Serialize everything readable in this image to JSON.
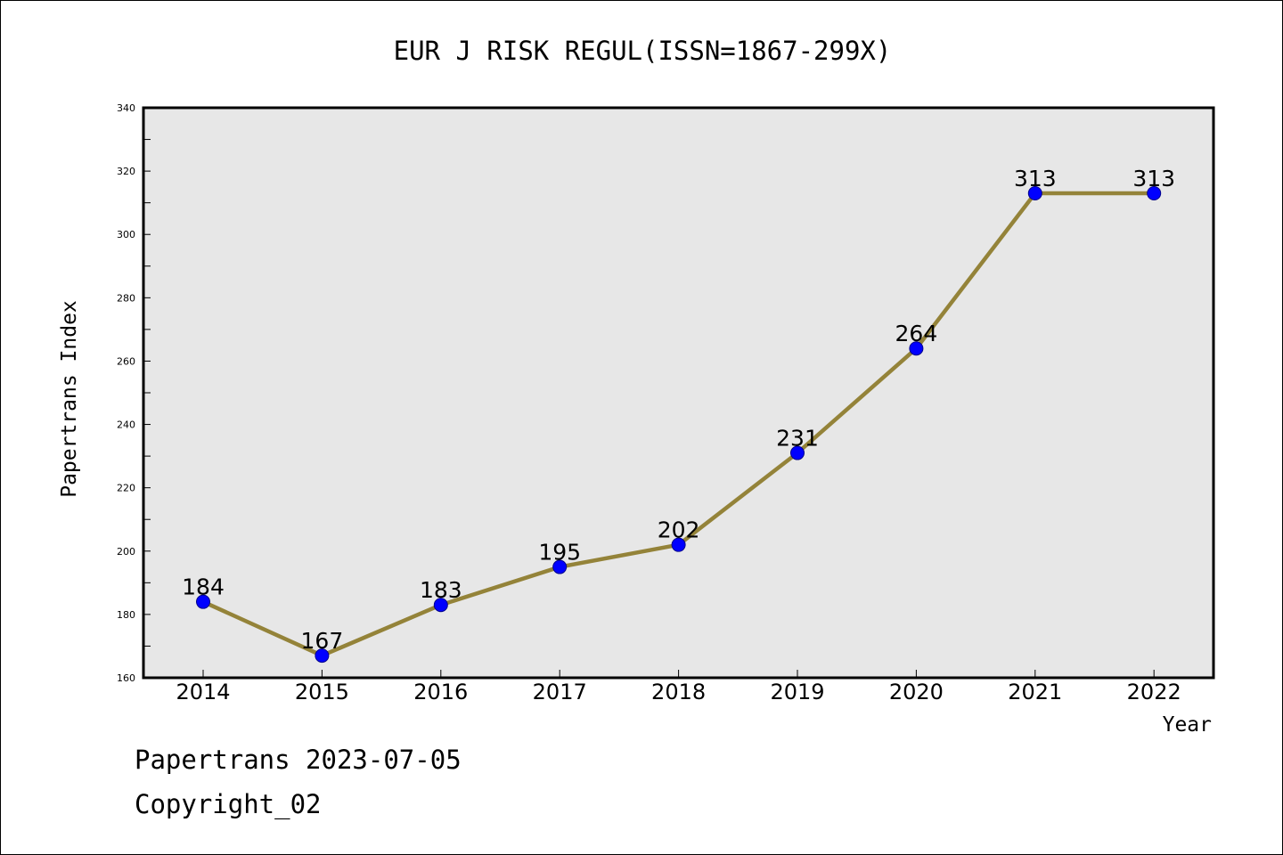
{
  "chart_data": {
    "type": "line",
    "title": "EUR J RISK REGUL(ISSN=1867-299X)",
    "xlabel": "Year",
    "ylabel": "Papertrans Index",
    "categories": [
      "2014",
      "2015",
      "2016",
      "2017",
      "2018",
      "2019",
      "2020",
      "2021",
      "2022"
    ],
    "values": [
      184,
      167,
      183,
      195,
      202,
      231,
      264,
      313,
      313
    ],
    "data_labels": [
      "184",
      "167",
      "183",
      "195",
      "202",
      "231",
      "264",
      "313",
      "313"
    ],
    "ylim": [
      160,
      340
    ],
    "yticks": [
      "160",
      "180",
      "200",
      "220",
      "240",
      "260",
      "280",
      "300",
      "320",
      "340"
    ],
    "grid": false,
    "colors": {
      "line": "#948339",
      "marker": "#0000ff",
      "plot_background": "#e7e7e7"
    }
  },
  "footer": {
    "line1": "Papertrans 2023-07-05",
    "line2": "Copyright_02"
  }
}
